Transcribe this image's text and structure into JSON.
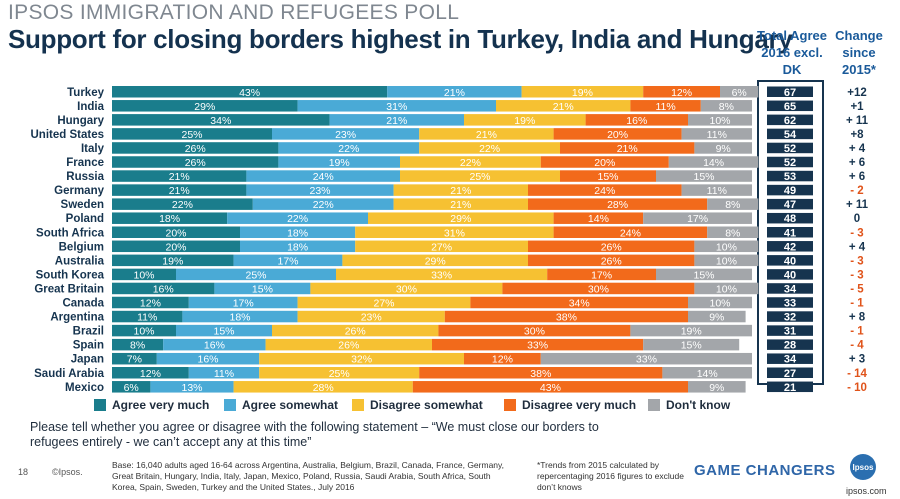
{
  "header": {
    "kicker": "IPSOS IMMIGRATION AND REFUGEES POLL",
    "title": "Support for closing borders highest in Turkey, India and Hungary",
    "col_total": [
      "Total Agree",
      "2016 excl.",
      "DK"
    ],
    "col_change": [
      "Change",
      "since",
      "2015*"
    ]
  },
  "chart_data": {
    "type": "bar",
    "orientation": "horizontal",
    "stacked": true,
    "percent": true,
    "categories": [
      "Turkey",
      "India",
      "Hungary",
      "United States",
      "Italy",
      "France",
      "Russia",
      "Germany",
      "Sweden",
      "Poland",
      "South Africa",
      "Belgium",
      "Australia",
      "South Korea",
      "Great Britain",
      "Canada",
      "Argentina",
      "Brazil",
      "Spain",
      "Japan",
      "Saudi Arabia",
      "Mexico"
    ],
    "series": [
      {
        "name": "Agree very much",
        "color": "#1a7d8c",
        "values": [
          43,
          29,
          34,
          25,
          26,
          26,
          21,
          21,
          22,
          18,
          20,
          20,
          19,
          10,
          16,
          12,
          11,
          10,
          8,
          7,
          12,
          6
        ]
      },
      {
        "name": "Agree somewhat",
        "color": "#4aaad6",
        "values": [
          21,
          31,
          21,
          23,
          22,
          19,
          24,
          23,
          22,
          22,
          18,
          18,
          17,
          25,
          15,
          17,
          18,
          15,
          16,
          16,
          11,
          13
        ]
      },
      {
        "name": "Disagree somewhat",
        "color": "#f6c132",
        "values": [
          19,
          21,
          19,
          21,
          22,
          22,
          25,
          21,
          21,
          29,
          31,
          27,
          29,
          33,
          30,
          27,
          23,
          26,
          26,
          32,
          25,
          28
        ]
      },
      {
        "name": "Disagree very much",
        "color": "#f26a1b",
        "values": [
          12,
          11,
          16,
          20,
          21,
          20,
          15,
          24,
          28,
          14,
          24,
          26,
          26,
          17,
          30,
          34,
          38,
          30,
          33,
          12,
          38,
          43
        ]
      },
      {
        "name": "Don't know",
        "color": "#a3a6aa",
        "values": [
          6,
          8,
          10,
          11,
          9,
          14,
          15,
          11,
          8,
          17,
          8,
          10,
          10,
          15,
          10,
          10,
          9,
          19,
          15,
          33,
          14,
          9
        ]
      }
    ],
    "total_agree": [
      "67",
      "65",
      "62",
      "54",
      "52",
      "52",
      "53",
      "49",
      "47",
      "48",
      "41",
      "42",
      "40",
      "40",
      "34",
      "33",
      "32",
      "31",
      "28",
      "34",
      "27",
      "21"
    ],
    "change": [
      "+12",
      "+1",
      "+ 11",
      "+8",
      "+ 4",
      "+ 6",
      "+ 6",
      "- 2",
      "+ 11",
      "0",
      "- 3",
      "+ 4",
      "- 3",
      "- 3",
      "- 5",
      "- 1",
      "+ 8",
      "- 1",
      "- 4",
      "+ 3",
      "- 14",
      "- 10"
    ],
    "change_sign": [
      1,
      1,
      1,
      1,
      1,
      1,
      1,
      -1,
      1,
      0,
      -1,
      1,
      -1,
      -1,
      -1,
      -1,
      1,
      -1,
      -1,
      1,
      -1,
      -1
    ],
    "xlim": [
      0,
      100
    ],
    "legend_position": "bottom"
  },
  "colors": {
    "positive_change": "#16344f",
    "negative_change": "#e0531a",
    "total_agree_bg": "#16344f",
    "title": "#14324f",
    "header_blue": "#1a5a9a"
  },
  "footer": {
    "statement": "Please tell whether you agree or disagree with the following statement – “We must close our borders to refugees entirely - we can’t accept any at this time”",
    "page_number": "18",
    "copyright": "©Ipsos.",
    "base": "Base: 16,040 adults aged 16-64 across  Argentina, Australia, Belgium, Brazil, Canada, France, Germany, Great Britain, Hungary, India, Italy, Japan, Mexico, Poland, Russia, Saudi Arabia, South Africa, South Korea, Spain, Sweden, Turkey and the United States., July 2016",
    "trend_note": "*Trends from 2015 calculated by repercentaging 2016 figures to exclude don’t knows",
    "brand_tagline": "GAME CHANGERS",
    "logo_text": "Ipsos",
    "url": "ipsos.com"
  }
}
